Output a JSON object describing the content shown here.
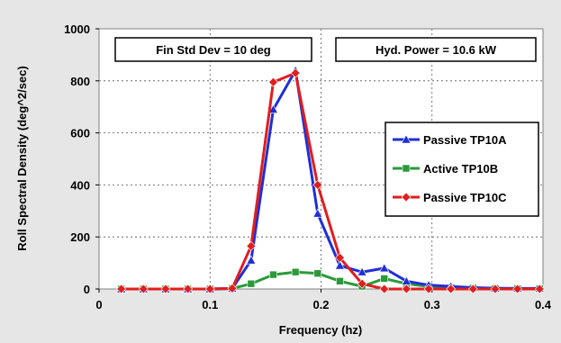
{
  "chart_data": {
    "type": "line",
    "xlabel": "Frequency (hz)",
    "ylabel": "Roll Spectral Density (deg^2/sec)",
    "xlim": [
      0,
      0.4
    ],
    "ylim": [
      0,
      1000
    ],
    "x_ticks": [
      0,
      0.1,
      0.2,
      0.3,
      0.4
    ],
    "x_tick_labels": [
      "0",
      "0.1",
      "0.2",
      "0.3",
      "0.4"
    ],
    "y_ticks": [
      0,
      200,
      400,
      600,
      800,
      1000
    ],
    "y_tick_labels": [
      "0",
      "200",
      "400",
      "600",
      "800",
      "1000"
    ],
    "grid": true,
    "legend_position": "right",
    "annotations": [
      {
        "text": "Fin Std Dev = 10 deg",
        "position": "top-left"
      },
      {
        "text": "Hyd. Power = 10.6 kW",
        "position": "top-right"
      }
    ],
    "series": [
      {
        "name": "Passive TP10A",
        "color": "#1f2fd6",
        "marker": "triangle",
        "x": [
          0.02,
          0.04,
          0.06,
          0.08,
          0.1,
          0.12,
          0.137,
          0.157,
          0.177,
          0.197,
          0.217,
          0.237,
          0.257,
          0.277,
          0.297,
          0.317,
          0.337,
          0.357,
          0.377,
          0.397
        ],
        "y": [
          0,
          0,
          0,
          0,
          0,
          2,
          110,
          690,
          840,
          290,
          90,
          65,
          80,
          30,
          15,
          10,
          5,
          3,
          2,
          2
        ]
      },
      {
        "name": "Active TP10B",
        "color": "#2a9a3a",
        "marker": "square",
        "x": [
          0.02,
          0.04,
          0.06,
          0.08,
          0.1,
          0.12,
          0.137,
          0.157,
          0.177,
          0.197,
          0.217,
          0.237,
          0.257,
          0.277,
          0.297,
          0.317,
          0.337,
          0.357,
          0.377,
          0.397
        ],
        "y": [
          0,
          0,
          0,
          0,
          0,
          2,
          20,
          55,
          65,
          60,
          30,
          10,
          40,
          20,
          10,
          5,
          3,
          2,
          1,
          1
        ]
      },
      {
        "name": "Passive TP10C",
        "color": "#e01e1e",
        "marker": "diamond",
        "x": [
          0.02,
          0.04,
          0.06,
          0.08,
          0.1,
          0.12,
          0.137,
          0.157,
          0.177,
          0.197,
          0.217,
          0.237,
          0.257,
          0.277,
          0.297,
          0.317,
          0.337,
          0.357,
          0.377,
          0.397
        ],
        "y": [
          0,
          0,
          0,
          0,
          0,
          2,
          165,
          795,
          830,
          400,
          120,
          20,
          0,
          0,
          0,
          0,
          0,
          0,
          0,
          0
        ]
      }
    ]
  }
}
